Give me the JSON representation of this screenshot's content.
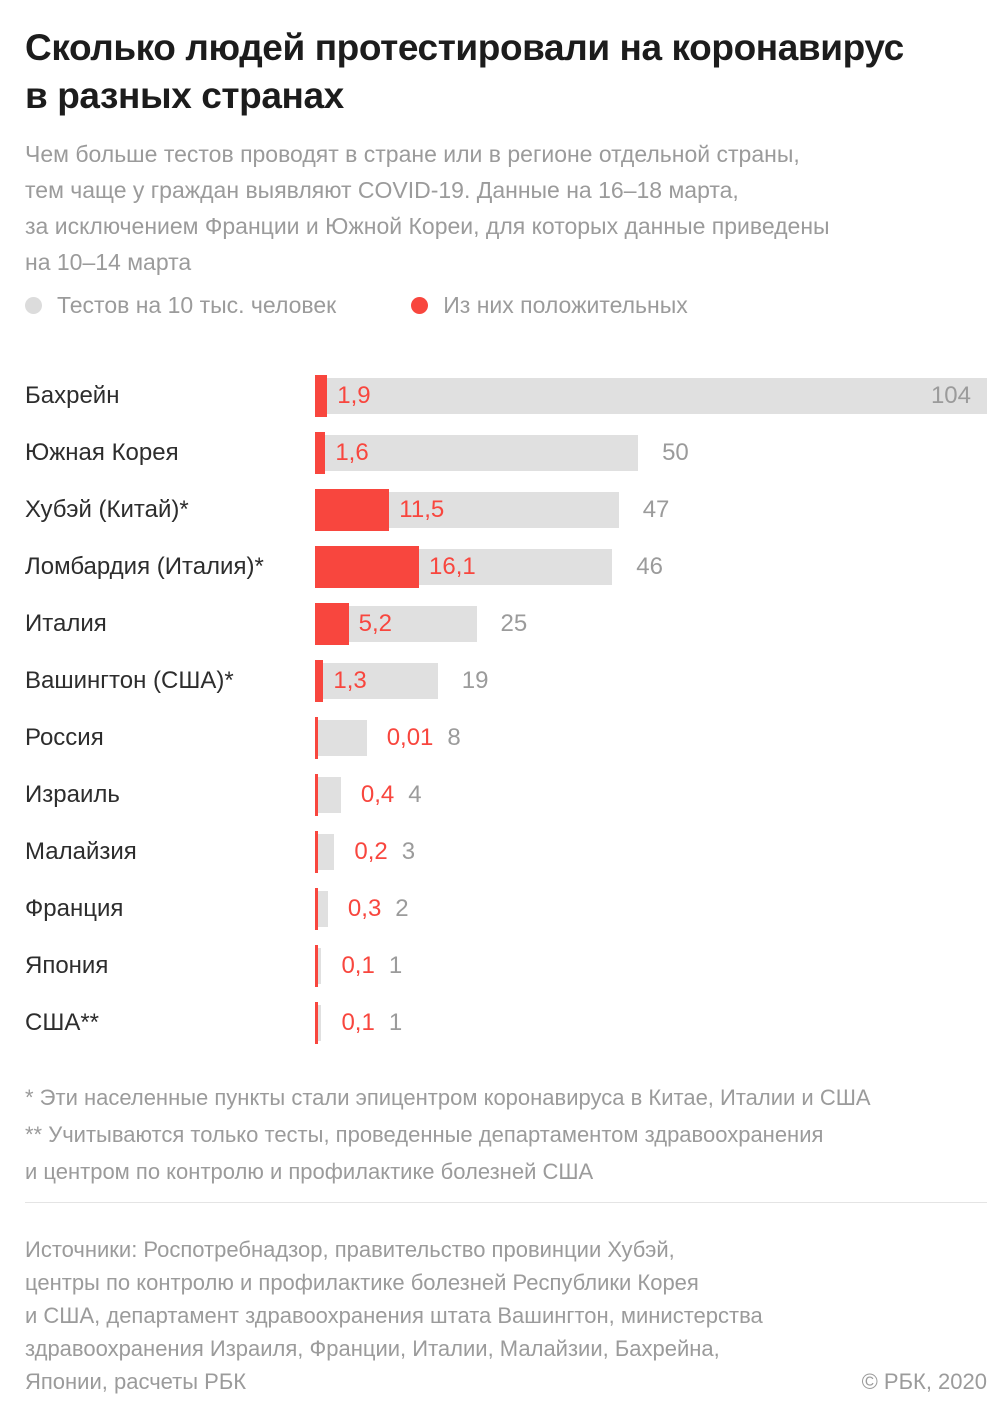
{
  "header": {
    "title_lines": [
      "Сколько людей протестировали на коронавирус",
      "в разных странах"
    ],
    "subtitle_lines": [
      "Чем больше тестов проводят в стране или в регионе отдельной страны,",
      "тем чаще у граждан выявляют COVID-19. Данные на 16–18 марта,",
      "за исключением Франции и Южной Кореи, для которых данные приведены",
      "на 10–14 марта"
    ]
  },
  "legend": {
    "tests_label": "Тестов на 10 тыс. человек",
    "positive_label": "Из них положительных"
  },
  "chart_data": {
    "type": "bar",
    "orientation": "horizontal",
    "value_axis_max": 104,
    "grid": false,
    "legend_position": "top",
    "categories": [
      "Бахрейн",
      "Южная Корея",
      "Хубэй (Китай)*",
      "Ломбардия (Италия)*",
      "Италия",
      "Вашингтон (США)*",
      "Россия",
      "Израиль",
      "Малайзия",
      "Франция",
      "Япония",
      "США**"
    ],
    "series": [
      {
        "name": "Тестов на 10 тыс. человек",
        "color": "#E0E0E0",
        "values": [
          104,
          50,
          47,
          46,
          25,
          19,
          8,
          4,
          3,
          2,
          1,
          1
        ]
      },
      {
        "name": "Из них положительных",
        "color": "#F8463E",
        "values": [
          1.9,
          1.6,
          11.5,
          16.1,
          5.2,
          1.3,
          0.01,
          0.4,
          0.2,
          0.3,
          0.1,
          0.1
        ]
      }
    ],
    "rows": [
      {
        "label": "Бахрейн",
        "tests": 104,
        "tests_label": "104",
        "positive": 1.9,
        "positive_label": "1,9",
        "positive_label_inside": true,
        "tests_label_inside": true
      },
      {
        "label": "Южная Корея",
        "tests": 50,
        "tests_label": "50",
        "positive": 1.6,
        "positive_label": "1,6",
        "positive_label_inside": true,
        "tests_label_inside": false
      },
      {
        "label": "Хубэй (Китай)*",
        "tests": 47,
        "tests_label": "47",
        "positive": 11.5,
        "positive_label": "11,5",
        "positive_label_inside": true,
        "tests_label_inside": false
      },
      {
        "label": "Ломбардия (Италия)*",
        "tests": 46,
        "tests_label": "46",
        "positive": 16.1,
        "positive_label": "16,1",
        "positive_label_inside": true,
        "tests_label_inside": false
      },
      {
        "label": "Италия",
        "tests": 25,
        "tests_label": "25",
        "positive": 5.2,
        "positive_label": "5,2",
        "positive_label_inside": true,
        "tests_label_inside": false
      },
      {
        "label": "Вашингтон (США)*",
        "tests": 19,
        "tests_label": "19",
        "positive": 1.3,
        "positive_label": "1,3",
        "positive_label_inside": true,
        "tests_label_inside": false
      },
      {
        "label": "Россия",
        "tests": 8,
        "tests_label": "8",
        "positive": 0.01,
        "positive_label": "0,01",
        "positive_label_inside": false,
        "tests_label_inside": false
      },
      {
        "label": "Израиль",
        "tests": 4,
        "tests_label": "4",
        "positive": 0.4,
        "positive_label": "0,4",
        "positive_label_inside": false,
        "tests_label_inside": false
      },
      {
        "label": "Малайзия",
        "tests": 3,
        "tests_label": "3",
        "positive": 0.2,
        "positive_label": "0,2",
        "positive_label_inside": false,
        "tests_label_inside": false
      },
      {
        "label": "Франция",
        "tests": 2,
        "tests_label": "2",
        "positive": 0.3,
        "positive_label": "0,3",
        "positive_label_inside": false,
        "tests_label_inside": false
      },
      {
        "label": "Япония",
        "tests": 1,
        "tests_label": "1",
        "positive": 0.1,
        "positive_label": "0,1",
        "positive_label_inside": false,
        "tests_label_inside": false
      },
      {
        "label": "США**",
        "tests": 1,
        "tests_label": "1",
        "positive": 0.1,
        "positive_label": "0,1",
        "positive_label_inside": false,
        "tests_label_inside": false
      }
    ]
  },
  "footnotes": {
    "first": "* Эти населенные пункты стали эпицентром коронавируса в Китае, Италии и США",
    "second_lines": [
      "** Учитываются только тесты, проведенные департаментом здравоохранения",
      "и центром по контролю и профилактике болезней США"
    ]
  },
  "sources_lines": [
    "Источники: Роспотребнадзор, правительство провинции Хубэй,",
    "центры по контролю и профилактике болезней Республики Корея",
    "и США, департамент здравоохранения штата Вашингтон, министерства",
    "здравоохранения Израиля, Франции, Италии, Малайзии, Бахрейна,",
    "Японии, расчеты РБК"
  ],
  "copyright": "© РБК, 2020",
  "colors": {
    "positive_red": "#F8463E",
    "tests_grey": "#E0E0E0",
    "legend_dot_grey": "#DCDCDC",
    "title_text": "#1C1C1C",
    "grey_text": "#9B9B9B",
    "label_text": "#2D2D2D",
    "divider": "#E4E4E4",
    "background": "#FFFFFF"
  }
}
